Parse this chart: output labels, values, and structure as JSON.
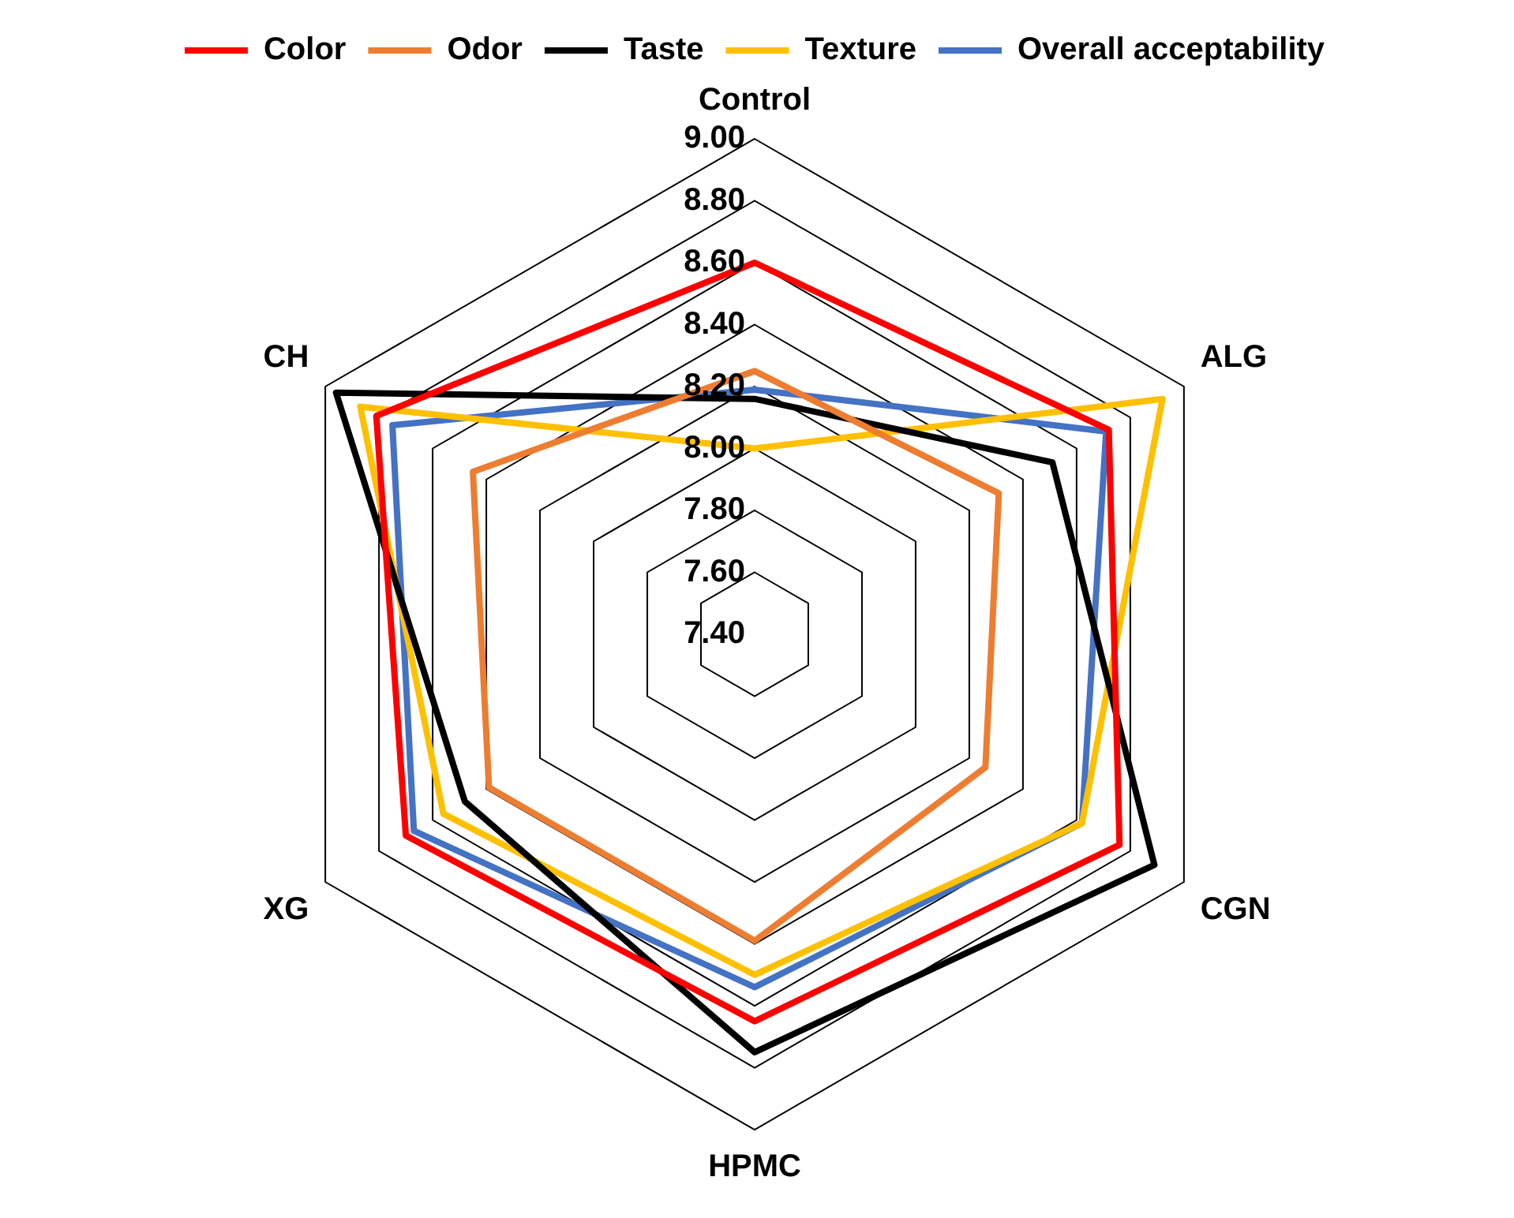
{
  "chart_data": {
    "type": "radar",
    "categories": [
      "Control",
      "ALG",
      "CGN",
      "HPMC",
      "XG",
      "CH"
    ],
    "series": [
      {
        "name": "Color",
        "color": "#ff0000",
        "values": [
          8.6,
          8.72,
          8.76,
          8.65,
          8.7,
          8.81
        ]
      },
      {
        "name": "Odor",
        "color": "#ed7d31",
        "values": [
          8.25,
          8.31,
          8.26,
          8.39,
          8.39,
          8.45
        ]
      },
      {
        "name": "Taste",
        "color": "#000000",
        "values": [
          8.16,
          8.51,
          8.89,
          8.75,
          8.48,
          8.96
        ]
      },
      {
        "name": "Texture",
        "color": "#ffc000",
        "values": [
          8.0,
          8.92,
          8.62,
          8.5,
          8.56,
          8.87
        ]
      },
      {
        "name": "Overall acceptability",
        "color": "#4472c4",
        "values": [
          8.19,
          8.71,
          8.62,
          8.54,
          8.67,
          8.75
        ]
      }
    ],
    "ylim": [
      7.4,
      9.0
    ],
    "yticks": [
      {
        "value": 7.4,
        "label": "7.40"
      },
      {
        "value": 7.6,
        "label": "7.60"
      },
      {
        "value": 7.8,
        "label": "7.80"
      },
      {
        "value": 8.0,
        "label": "8.00"
      },
      {
        "value": 8.2,
        "label": "8.20"
      },
      {
        "value": 8.4,
        "label": "8.40"
      },
      {
        "value": 8.6,
        "label": "8.60"
      },
      {
        "value": 8.8,
        "label": "8.80"
      },
      {
        "value": 9.0,
        "label": "9.00"
      }
    ],
    "grid": true,
    "legend": "top",
    "marker": "none",
    "line_style": "solid"
  }
}
